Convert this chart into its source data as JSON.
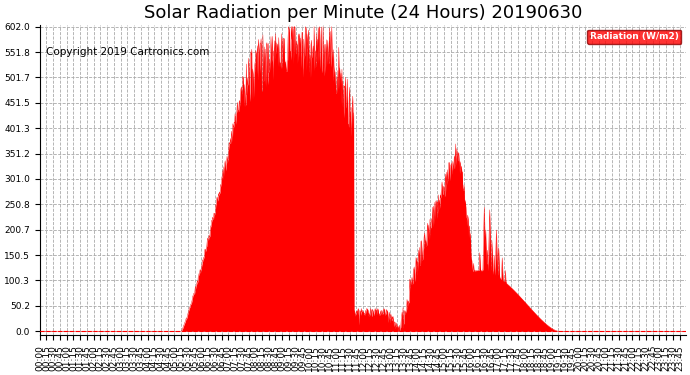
{
  "title": "Solar Radiation per Minute (24 Hours) 20190630",
  "copyright_text": "Copyright 2019 Cartronics.com",
  "legend_label": "Radiation (W/m2)",
  "y_ticks": [
    0.0,
    50.2,
    100.3,
    150.5,
    200.7,
    250.8,
    301.0,
    351.2,
    401.3,
    451.5,
    501.7,
    551.8,
    602.0
  ],
  "y_max": 602.0,
  "fill_color": "#FF0000",
  "bg_color": "#FFFFFF",
  "grid_color": "#AAAAAA",
  "dashed_line_color": "#FF0000",
  "title_fontsize": 13,
  "copyright_fontsize": 7.5,
  "tick_fontsize": 6.5,
  "x_tick_interval_minutes": 15,
  "total_minutes": 1440
}
